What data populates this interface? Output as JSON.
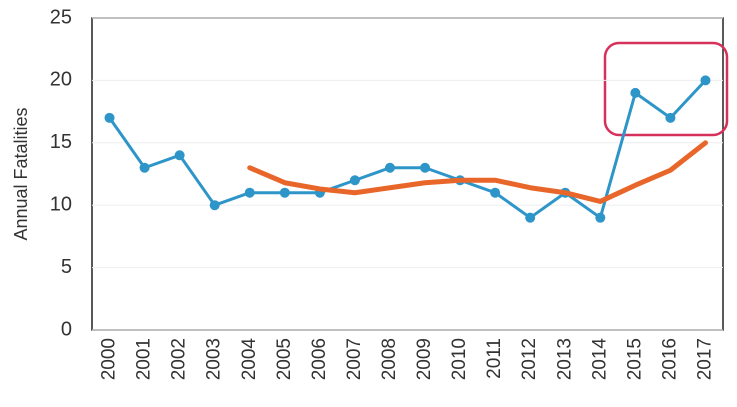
{
  "chart_data": {
    "type": "line",
    "ylabel": "Annual Fatalities",
    "categories": [
      "2000",
      "2001",
      "2002",
      "2003",
      "2004",
      "2005",
      "2006",
      "2007",
      "2008",
      "2009",
      "2010",
      "2011",
      "2012",
      "2013",
      "2014",
      "2015",
      "2016",
      "2017"
    ],
    "series": [
      {
        "color": "#2e95c8",
        "markers": true,
        "values": [
          17,
          13,
          14,
          10,
          11,
          11,
          11,
          12,
          13,
          13,
          12,
          11,
          9,
          11,
          9,
          19,
          17,
          20
        ]
      },
      {
        "color": "#e8662a",
        "markers": false,
        "values": [
          null,
          null,
          null,
          null,
          13,
          11.8,
          11.3,
          11,
          11.4,
          11.8,
          12,
          12,
          11.4,
          11,
          10.3,
          11.6,
          12.8,
          15
        ]
      }
    ],
    "ylim": [
      0,
      25
    ],
    "yticks": [
      0,
      5,
      10,
      15,
      20,
      25
    ],
    "grid": true
  }
}
